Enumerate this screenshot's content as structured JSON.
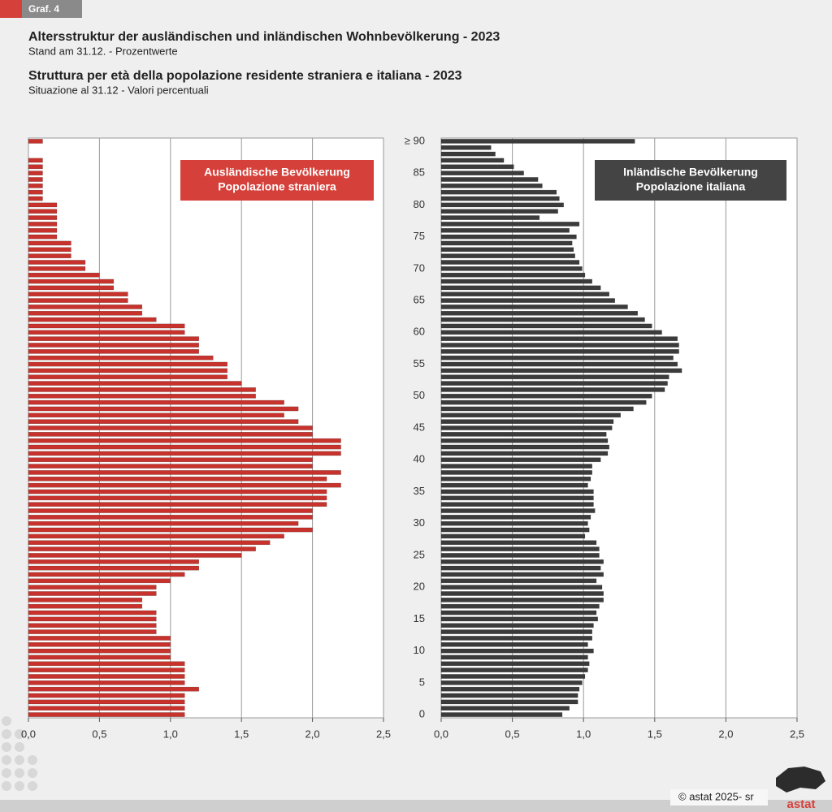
{
  "header": {
    "tag": "Graf. 4",
    "title_de": "Altersstruktur der ausländischen und inländischen Wohnbevölkerung - 2023",
    "subtitle_de": "Stand am 31.12. - Prozentwerte",
    "title_it": "Struttura per età della popolazione residente straniera e italiana - 2023",
    "subtitle_it": "Situazione al 31.12 - Valori percentuali"
  },
  "footer": {
    "credit": "© astat 2025- sr",
    "logo": "astat"
  },
  "chart_data": [
    {
      "type": "bar",
      "orientation": "horizontal",
      "color": "#c8322c",
      "grid": true,
      "legend": [
        "Ausländische Bevölkerung",
        "Popolazione straniera"
      ],
      "legend_color": "#d5403a",
      "xlim": [
        0,
        2.5
      ],
      "xticks": [
        {
          "value": 0,
          "label": "0,0"
        },
        {
          "value": 0.5,
          "label": "0,5"
        },
        {
          "value": 1,
          "label": "1,0"
        },
        {
          "value": 1.5,
          "label": "1,5"
        },
        {
          "value": 2,
          "label": "2,0"
        },
        {
          "value": 2.5,
          "label": "2,5"
        }
      ],
      "values": [
        1.1,
        1.1,
        1.1,
        1.1,
        1.2,
        1.1,
        1.1,
        1.1,
        1.1,
        1.0,
        1.0,
        1.0,
        1.0,
        0.9,
        0.9,
        0.9,
        0.9,
        0.8,
        0.8,
        0.9,
        0.9,
        1.0,
        1.1,
        1.2,
        1.2,
        1.5,
        1.6,
        1.7,
        1.8,
        2.0,
        1.9,
        2.0,
        2.0,
        2.1,
        2.1,
        2.1,
        2.2,
        2.1,
        2.2,
        2.0,
        2.0,
        2.2,
        2.2,
        2.2,
        2.0,
        2.0,
        1.9,
        1.8,
        1.9,
        1.8,
        1.6,
        1.6,
        1.5,
        1.4,
        1.4,
        1.4,
        1.3,
        1.2,
        1.2,
        1.2,
        1.1,
        1.1,
        0.9,
        0.8,
        0.8,
        0.7,
        0.7,
        0.6,
        0.6,
        0.5,
        0.4,
        0.4,
        0.3,
        0.3,
        0.3,
        0.2,
        0.2,
        0.2,
        0.2,
        0.2,
        0.2,
        0.1,
        0.1,
        0.1,
        0.1,
        0.1,
        0.1,
        0.1,
        0,
        0,
        0.1
      ]
    },
    {
      "type": "bar",
      "orientation": "horizontal",
      "color": "#3b3b3b",
      "grid": true,
      "legend": [
        "Inländische Bevölkerung",
        "Popolazione italiana"
      ],
      "legend_color": "#444444",
      "xlim": [
        0,
        2.5
      ],
      "xticks": [
        {
          "value": 0,
          "label": "0,0"
        },
        {
          "value": 0.5,
          "label": "0,5"
        },
        {
          "value": 1,
          "label": "1,0"
        },
        {
          "value": 1.5,
          "label": "1,5"
        },
        {
          "value": 2,
          "label": "2,0"
        },
        {
          "value": 2.5,
          "label": "2,5"
        }
      ],
      "categories": [
        "0",
        null,
        null,
        null,
        null,
        "5",
        null,
        null,
        null,
        null,
        "10",
        null,
        null,
        null,
        null,
        "15",
        null,
        null,
        null,
        null,
        "20",
        null,
        null,
        null,
        null,
        "25",
        null,
        null,
        null,
        null,
        "30",
        null,
        null,
        null,
        null,
        "35",
        null,
        null,
        null,
        null,
        "40",
        null,
        null,
        null,
        null,
        "45",
        null,
        null,
        null,
        null,
        "50",
        null,
        null,
        null,
        null,
        "55",
        null,
        null,
        null,
        null,
        "60",
        null,
        null,
        null,
        null,
        "65",
        null,
        null,
        null,
        null,
        "70",
        null,
        null,
        null,
        null,
        "75",
        null,
        null,
        null,
        null,
        "80",
        null,
        null,
        null,
        null,
        "85",
        null,
        null,
        null,
        null,
        "≥ 90"
      ],
      "values": [
        0.85,
        0.9,
        0.96,
        0.96,
        0.97,
        0.99,
        1.01,
        1.03,
        1.04,
        1.03,
        1.07,
        1.03,
        1.06,
        1.06,
        1.07,
        1.1,
        1.09,
        1.11,
        1.14,
        1.14,
        1.13,
        1.09,
        1.14,
        1.12,
        1.14,
        1.11,
        1.11,
        1.09,
        1.01,
        1.04,
        1.03,
        1.05,
        1.08,
        1.07,
        1.07,
        1.07,
        1.03,
        1.05,
        1.06,
        1.06,
        1.12,
        1.17,
        1.18,
        1.17,
        1.16,
        1.2,
        1.21,
        1.26,
        1.35,
        1.44,
        1.48,
        1.57,
        1.59,
        1.6,
        1.69,
        1.66,
        1.63,
        1.67,
        1.67,
        1.66,
        1.55,
        1.48,
        1.43,
        1.38,
        1.31,
        1.22,
        1.18,
        1.12,
        1.06,
        1.01,
        0.99,
        0.97,
        0.94,
        0.93,
        0.92,
        0.95,
        0.9,
        0.97,
        0.69,
        0.82,
        0.86,
        0.83,
        0.81,
        0.71,
        0.68,
        0.58,
        0.51,
        0.44,
        0.38,
        0.35,
        1.36
      ]
    }
  ]
}
